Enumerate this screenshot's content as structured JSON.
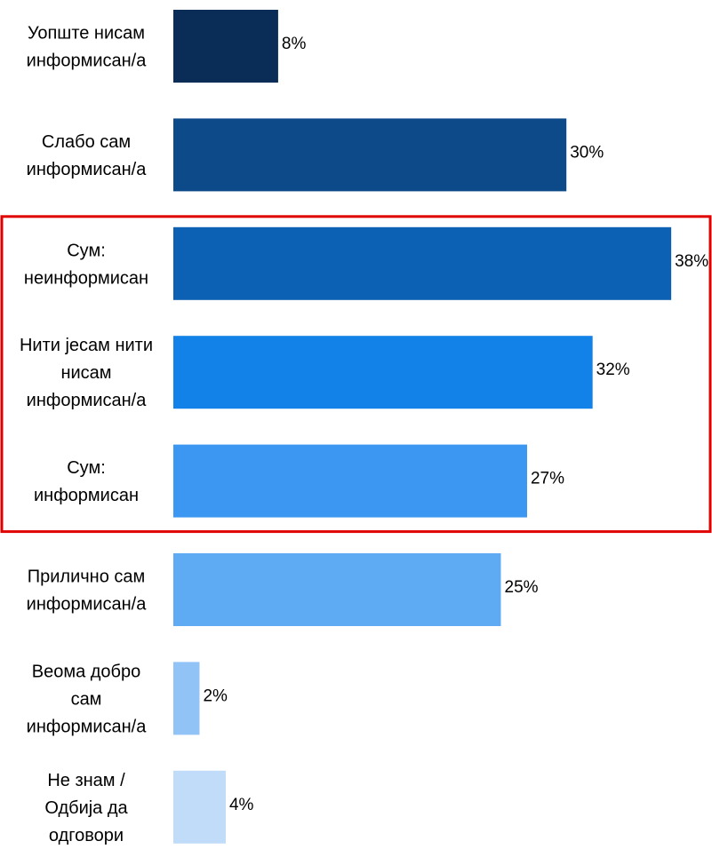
{
  "chart_data": {
    "type": "bar",
    "orientation": "horizontal",
    "categories": [
      [
        "Уопште нисам",
        "информисан/а"
      ],
      [
        "Слабо сам",
        "информисан/а"
      ],
      [
        "Сум:",
        "неинформисан"
      ],
      [
        "Нити јесам нити",
        "нисам",
        "информисан/а"
      ],
      [
        "Сум:",
        "информисан"
      ],
      [
        "Прилично сам",
        "информисан/а"
      ],
      [
        "Веома добро",
        "сам",
        "информисан/а"
      ],
      [
        "Не знам /",
        "Одбија да",
        "одговори"
      ]
    ],
    "values": [
      8,
      30,
      38,
      32,
      27,
      25,
      2,
      4
    ],
    "value_labels": [
      "8%",
      "30%",
      "38%",
      "32%",
      "27%",
      "25%",
      "2%",
      "4%"
    ],
    "colors": [
      "#0a2d57",
      "#0d4a8a",
      "#0c61b4",
      "#1281e8",
      "#3c97f2",
      "#5eabf4",
      "#91c3f6",
      "#c0dcf8"
    ],
    "highlight": {
      "categories": [
        2,
        3,
        4
      ],
      "color": "#e00000"
    },
    "xlim": [
      0,
      38
    ],
    "title": "",
    "xlabel": "",
    "ylabel": "",
    "grid": false,
    "legend": "none"
  }
}
